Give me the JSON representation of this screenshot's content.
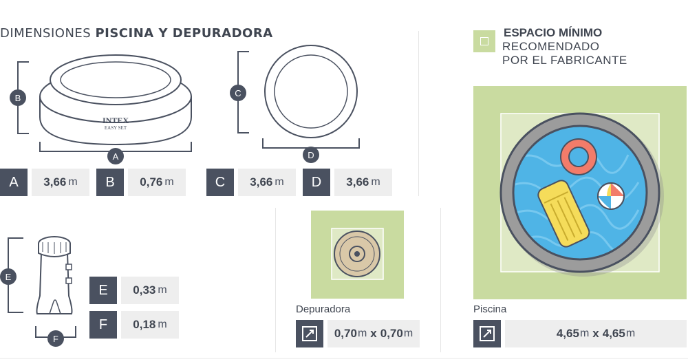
{
  "title": {
    "prefix": "DIMENSIONES",
    "bold": "PISCINA Y DEPURADORA"
  },
  "letters": {
    "a": "A",
    "b": "B",
    "c": "C",
    "d": "D",
    "e": "E",
    "f": "F"
  },
  "intex_brand": "INTEX",
  "intex_model": "EASY SET",
  "dims": [
    {
      "letter": "A",
      "number": "3,66",
      "unit": "m"
    },
    {
      "letter": "B",
      "number": "0,76",
      "unit": "m"
    },
    {
      "letter": "C",
      "number": "3,66",
      "unit": "m"
    },
    {
      "letter": "D",
      "number": "3,66",
      "unit": "m"
    },
    {
      "letter": "E",
      "number": "0,33",
      "unit": "m"
    },
    {
      "letter": "F",
      "number": "0,18",
      "unit": "m"
    }
  ],
  "space": {
    "line1": "ESPACIO MÍNIMO",
    "line2": "RECOMENDADO",
    "line3": "POR EL FABRICANTE"
  },
  "depuradora": {
    "label": "Depuradora",
    "w": "0,70",
    "h": "0,70",
    "unit": "m",
    "sep": "x"
  },
  "piscina": {
    "label": "Piscina",
    "w": "4,65",
    "h": "4,65",
    "unit": "m",
    "sep": "x"
  },
  "colors": {
    "dark": "#4a5160",
    "green": "#c9dba0",
    "green_light": "#dfe9c5",
    "water": "#4fb4e6",
    "rim": "#9a9a9a"
  }
}
